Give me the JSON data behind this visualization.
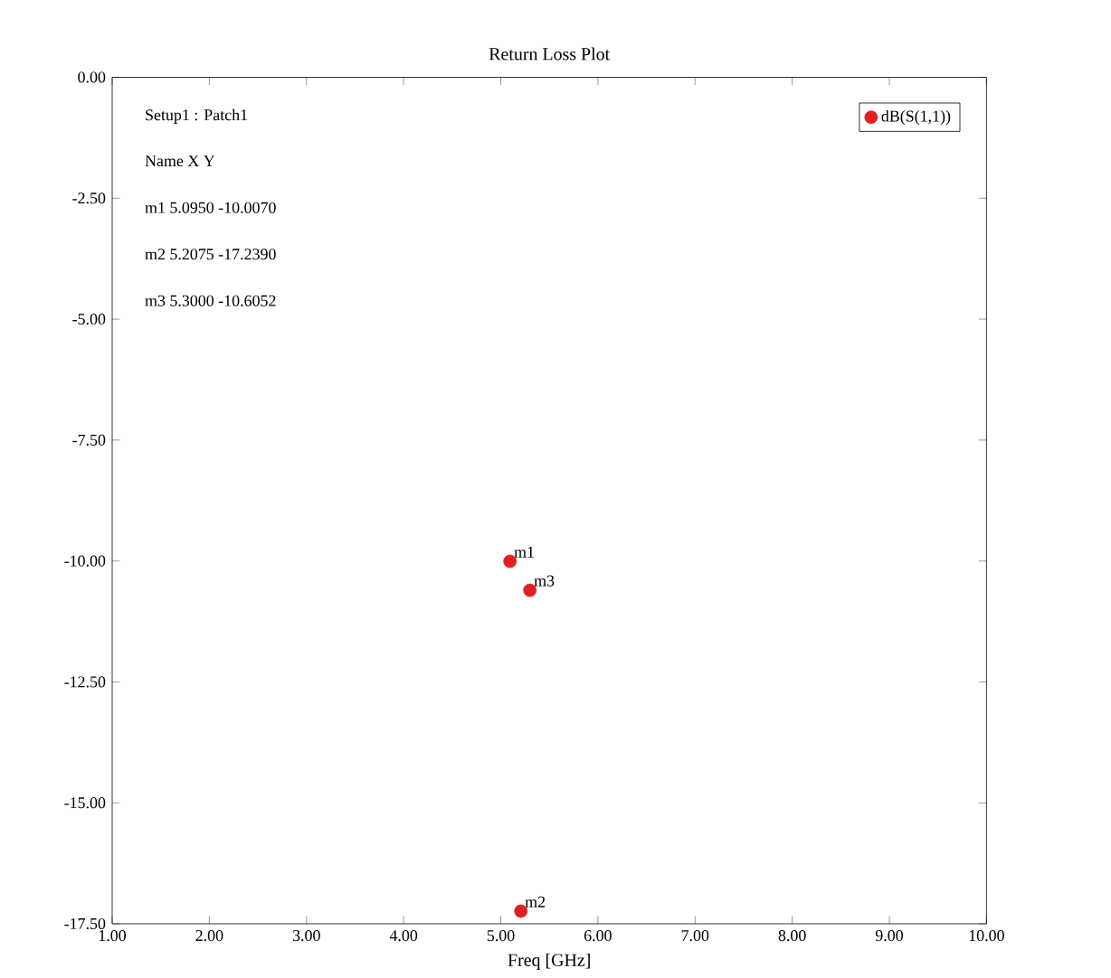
{
  "chart_data": {
    "type": "scatter",
    "title": "Return Loss Plot",
    "xlabel": "Freq [GHz]",
    "x": [
      5.095,
      5.2075,
      5.3
    ],
    "series": [
      {
        "name": "dB(S(1,1))",
        "color": "#e02020",
        "values": [
          -10.007,
          -17.239,
          -10.6052
        ]
      }
    ],
    "marker": "circle",
    "legend": "top right",
    "xlim": [
      1,
      10
    ],
    "xticks": [
      {
        "value": 1,
        "label": "1.00"
      },
      {
        "value": 2,
        "label": "2.00"
      },
      {
        "value": 3,
        "label": "3.00"
      },
      {
        "value": 4,
        "label": "4.00"
      },
      {
        "value": 5,
        "label": "5.00"
      },
      {
        "value": 6,
        "label": "6.00"
      },
      {
        "value": 7,
        "label": "7.00"
      },
      {
        "value": 8,
        "label": "8.00"
      },
      {
        "value": 9,
        "label": "9.00"
      },
      {
        "value": 10,
        "label": "10.00"
      }
    ],
    "ylim": [
      -17.5,
      0
    ],
    "yticks": [
      {
        "value": 0,
        "label": "0.00"
      },
      {
        "value": -2.5,
        "label": "-2.50"
      },
      {
        "value": -5,
        "label": "-5.00"
      },
      {
        "value": -7.5,
        "label": "-7.50"
      },
      {
        "value": -10,
        "label": "-10.00"
      },
      {
        "value": -12.5,
        "label": "-12.50"
      },
      {
        "value": -15,
        "label": "-15.00"
      },
      {
        "value": -17.5,
        "label": "-17.50"
      }
    ],
    "annotations": [
      "Setup1 : Patch1",
      "Name X Y",
      "m1 5.0950 -10.0070",
      "m2 5.2075 -17.2390",
      "m3 5.3000 -10.6052",
      {
        "text": "m1",
        "x": 5.095,
        "y": -10.007
      },
      {
        "text": "m2",
        "x": 5.2075,
        "y": -17.239
      },
      {
        "text": "m3",
        "x": 5.3,
        "y": -10.6052
      }
    ]
  }
}
